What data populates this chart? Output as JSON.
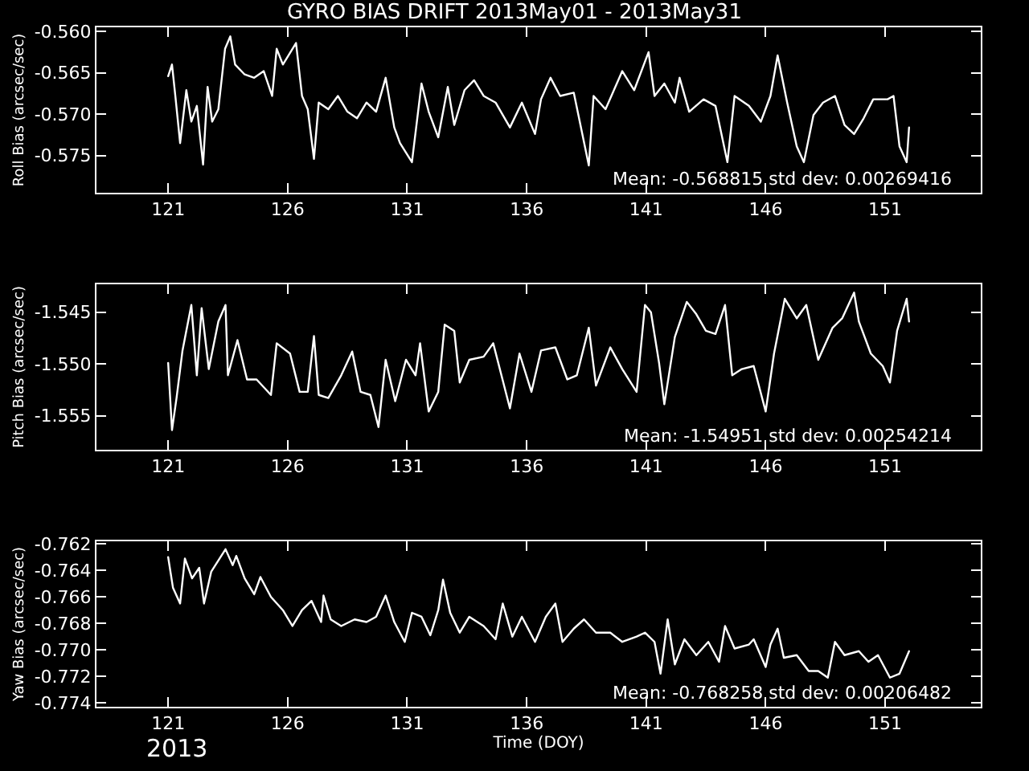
{
  "chart_data": [
    {
      "type": "line",
      "title": "GYRO BIAS DRIFT 2013May01 - 2013May31",
      "ylabel": "Roll Bias (arcsec/sec)",
      "color": "#ffffff",
      "grid": false,
      "annotations": [
        "Mean: -0.568815 std dev: 0.00269416"
      ],
      "xlim": [
        118,
        155
      ],
      "xticks": [
        121,
        126,
        131,
        136,
        141,
        146,
        151
      ],
      "ylim": [
        -0.5795,
        -0.5595
      ],
      "yticks": [
        {
          "value": -0.56,
          "label": "-0.560"
        },
        -0.565,
        {
          "value": -0.57,
          "label": "-0.570"
        },
        -0.575
      ],
      "x": [
        121.0,
        121.16,
        121.3,
        121.5,
        121.76,
        121.97,
        122.2,
        122.46,
        122.65,
        122.84,
        123.1,
        123.38,
        123.6,
        123.8,
        124.2,
        124.6,
        125.0,
        125.35,
        125.54,
        125.8,
        126.35,
        126.6,
        126.84,
        127.1,
        127.3,
        127.7,
        128.1,
        128.5,
        128.9,
        129.3,
        129.7,
        130.1,
        130.46,
        130.7,
        131.2,
        131.6,
        131.9,
        132.3,
        132.7,
        132.97,
        133.4,
        133.8,
        134.2,
        134.7,
        135.3,
        135.8,
        136.35,
        136.6,
        137.0,
        137.4,
        137.97,
        138.6,
        138.8,
        139.3,
        140.0,
        140.5,
        141.1,
        141.35,
        141.76,
        142.2,
        142.4,
        142.8,
        143.4,
        143.9,
        144.4,
        144.7,
        145.3,
        145.8,
        146.2,
        146.5,
        146.9,
        147.3,
        147.6,
        148.0,
        148.4,
        148.9,
        149.3,
        149.7,
        150.1,
        150.5,
        151.1,
        151.35,
        151.6,
        151.9,
        152.0
      ],
      "values": [
        -0.5654,
        -0.564,
        -0.5678,
        -0.5735,
        -0.5671,
        -0.5709,
        -0.569,
        -0.5761,
        -0.5667,
        -0.5709,
        -0.5694,
        -0.5621,
        -0.5606,
        -0.564,
        -0.5652,
        -0.5656,
        -0.5648,
        -0.5678,
        -0.5621,
        -0.564,
        -0.5614,
        -0.5678,
        -0.5694,
        -0.5754,
        -0.5686,
        -0.5694,
        -0.5678,
        -0.5697,
        -0.5705,
        -0.5686,
        -0.5697,
        -0.5656,
        -0.5716,
        -0.5735,
        -0.5758,
        -0.5663,
        -0.5697,
        -0.5728,
        -0.5667,
        -0.5713,
        -0.5671,
        -0.5659,
        -0.5678,
        -0.5686,
        -0.5716,
        -0.5686,
        -0.5724,
        -0.5682,
        -0.5656,
        -0.5678,
        -0.5674,
        -0.5762,
        -0.5678,
        -0.5694,
        -0.5648,
        -0.5671,
        -0.5625,
        -0.5678,
        -0.5663,
        -0.5686,
        -0.5656,
        -0.5697,
        -0.5682,
        -0.569,
        -0.5758,
        -0.5678,
        -0.569,
        -0.5709,
        -0.5678,
        -0.5629,
        -0.5686,
        -0.5739,
        -0.5758,
        -0.5701,
        -0.5686,
        -0.5678,
        -0.5713,
        -0.5724,
        -0.5705,
        -0.5682,
        -0.5682,
        -0.5678,
        -0.5739,
        -0.5758,
        -0.5716
      ]
    },
    {
      "type": "line",
      "ylabel": "Pitch Bias (arcsec/sec)",
      "color": "#ffffff",
      "grid": false,
      "annotations": [
        "Mean: -1.54951 std dev: 0.00254214"
      ],
      "xlim": [
        118,
        155
      ],
      "xticks": [
        121,
        126,
        131,
        136,
        141,
        146,
        151
      ],
      "ylim": [
        -1.5583,
        -1.5423
      ],
      "yticks": [
        -1.545,
        {
          "value": -1.55,
          "label": "-1.550"
        },
        -1.555
      ],
      "x": [
        121.0,
        121.16,
        121.35,
        121.6,
        121.97,
        122.2,
        122.4,
        122.7,
        123.1,
        123.4,
        123.5,
        123.9,
        124.3,
        124.7,
        125.3,
        125.54,
        126.1,
        126.5,
        126.84,
        127.1,
        127.3,
        127.7,
        128.24,
        128.7,
        129.05,
        129.46,
        129.8,
        130.1,
        130.5,
        130.95,
        131.35,
        131.54,
        131.9,
        132.3,
        132.57,
        132.97,
        133.2,
        133.6,
        134.2,
        134.6,
        135.3,
        135.7,
        136.2,
        136.6,
        137.2,
        137.7,
        138.1,
        138.6,
        138.9,
        139.5,
        140.0,
        140.6,
        140.95,
        141.2,
        141.54,
        141.76,
        142.2,
        142.7,
        143.1,
        143.5,
        143.9,
        144.3,
        144.6,
        145.0,
        145.5,
        146.0,
        146.35,
        146.8,
        147.3,
        147.7,
        148.2,
        148.8,
        149.2,
        149.7,
        149.9,
        150.4,
        150.9,
        151.2,
        151.5,
        151.9,
        152.0
      ],
      "values": [
        -1.5499,
        -1.5564,
        -1.5533,
        -1.5487,
        -1.5443,
        -1.5511,
        -1.5446,
        -1.5505,
        -1.5459,
        -1.5443,
        -1.5511,
        -1.5477,
        -1.5515,
        -1.5515,
        -1.553,
        -1.548,
        -1.549,
        -1.5527,
        -1.5527,
        -1.5473,
        -1.553,
        -1.5533,
        -1.5511,
        -1.5488,
        -1.5527,
        -1.553,
        -1.5561,
        -1.5496,
        -1.5536,
        -1.5496,
        -1.5511,
        -1.548,
        -1.5546,
        -1.5527,
        -1.5462,
        -1.5468,
        -1.5518,
        -1.5496,
        -1.5493,
        -1.548,
        -1.5543,
        -1.549,
        -1.5527,
        -1.5487,
        -1.5484,
        -1.5515,
        -1.5511,
        -1.5465,
        -1.5521,
        -1.5484,
        -1.5505,
        -1.5527,
        -1.5443,
        -1.545,
        -1.5499,
        -1.5539,
        -1.5474,
        -1.544,
        -1.5452,
        -1.5468,
        -1.5471,
        -1.5443,
        -1.5511,
        -1.5505,
        -1.5502,
        -1.5546,
        -1.549,
        -1.5437,
        -1.5456,
        -1.5443,
        -1.5496,
        -1.5465,
        -1.5456,
        -1.5431,
        -1.5459,
        -1.549,
        -1.5502,
        -1.5518,
        -1.5468,
        -1.5437,
        -1.5459
      ]
    },
    {
      "type": "line",
      "xlabel": "Time (DOY)",
      "ylabel": "Yaw Bias (arcsec/sec)",
      "color": "#ffffff",
      "grid": false,
      "annotations": [
        "Mean: -0.768258 std dev: 0.00206482",
        "2013"
      ],
      "xlim": [
        118,
        155
      ],
      "xticks": [
        121,
        126,
        131,
        136,
        141,
        146,
        151
      ],
      "ylim": [
        -0.7743,
        -0.7618
      ],
      "yticks": [
        -0.762,
        -0.764,
        -0.766,
        -0.768,
        {
          "value": -0.77,
          "label": "-0.770"
        },
        -0.772,
        -0.774
      ],
      "x": [
        121.0,
        121.2,
        121.5,
        121.7,
        122.0,
        122.3,
        122.5,
        122.8,
        123.4,
        123.7,
        123.85,
        124.2,
        124.6,
        124.86,
        125.3,
        125.8,
        126.2,
        126.6,
        127.0,
        127.4,
        127.5,
        127.8,
        128.24,
        128.8,
        129.3,
        129.7,
        130.1,
        130.46,
        130.9,
        131.2,
        131.6,
        131.97,
        132.3,
        132.5,
        132.8,
        133.2,
        133.6,
        134.2,
        134.7,
        135.0,
        135.4,
        135.8,
        136.35,
        136.8,
        137.2,
        137.5,
        137.97,
        138.4,
        138.9,
        139.5,
        140.0,
        140.6,
        140.95,
        141.35,
        141.6,
        141.9,
        142.2,
        142.6,
        143.1,
        143.6,
        144.05,
        144.3,
        144.7,
        145.3,
        145.5,
        146.0,
        146.2,
        146.5,
        146.76,
        147.3,
        147.8,
        148.2,
        148.6,
        148.9,
        149.3,
        149.9,
        150.3,
        150.7,
        151.2,
        151.6,
        152.0
      ],
      "values": [
        -0.763,
        -0.7653,
        -0.7665,
        -0.7631,
        -0.7646,
        -0.7638,
        -0.7665,
        -0.7641,
        -0.7624,
        -0.7636,
        -0.7629,
        -0.7646,
        -0.7658,
        -0.7645,
        -0.766,
        -0.767,
        -0.7682,
        -0.767,
        -0.7663,
        -0.7679,
        -0.7659,
        -0.7677,
        -0.7682,
        -0.7677,
        -0.7679,
        -0.7675,
        -0.7659,
        -0.7679,
        -0.7694,
        -0.7672,
        -0.7675,
        -0.7689,
        -0.767,
        -0.7647,
        -0.7672,
        -0.7687,
        -0.7675,
        -0.7682,
        -0.7692,
        -0.7665,
        -0.769,
        -0.7675,
        -0.7694,
        -0.7675,
        -0.7665,
        -0.7694,
        -0.7684,
        -0.7677,
        -0.7687,
        -0.7687,
        -0.7694,
        -0.769,
        -0.7687,
        -0.7694,
        -0.7718,
        -0.7677,
        -0.7711,
        -0.7692,
        -0.7704,
        -0.7694,
        -0.7709,
        -0.7682,
        -0.7699,
        -0.7696,
        -0.7692,
        -0.7713,
        -0.7696,
        -0.7684,
        -0.7706,
        -0.7704,
        -0.7716,
        -0.7716,
        -0.7721,
        -0.7694,
        -0.7704,
        -0.7701,
        -0.7709,
        -0.7704,
        -0.7721,
        -0.7718,
        -0.7701
      ]
    }
  ]
}
